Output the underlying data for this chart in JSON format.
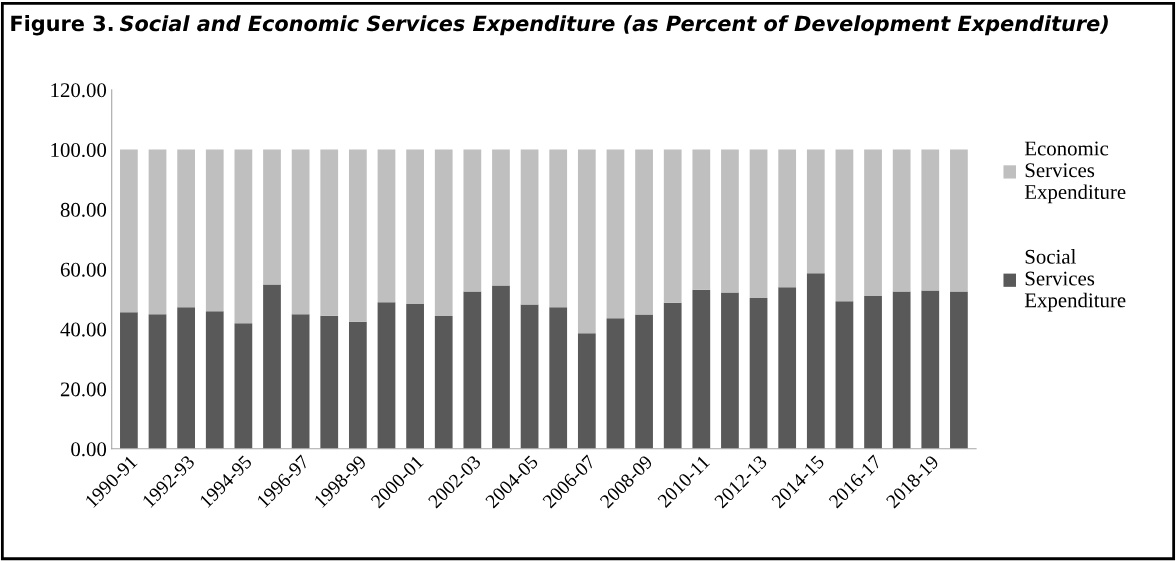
{
  "chart_data": {
    "type": "bar",
    "stacked": true,
    "title": "Figure 3.",
    "subtitle": "Social and Economic Services Expenditure (as Percent of Development Expenditure)",
    "categories": [
      "1990-91",
      null,
      "1992-93",
      null,
      "1994-95",
      null,
      "1996-97",
      null,
      "1998-99",
      null,
      "2000-01",
      null,
      "2002-03",
      null,
      "2004-05",
      null,
      "2006-07",
      null,
      "2008-09",
      null,
      "2010-11",
      null,
      "2012-13",
      null,
      "2014-15",
      null,
      "2016-17",
      null,
      "2018-19",
      null
    ],
    "series": [
      {
        "name": "Social Services Expenditure",
        "color": "#595959",
        "values": [
          45.6,
          45.0,
          47.3,
          46.0,
          42.0,
          54.9,
          45.0,
          44.5,
          42.5,
          49.0,
          48.4,
          44.4,
          52.6,
          54.6,
          48.2,
          47.3,
          38.6,
          43.6,
          44.9,
          48.8,
          53.2,
          52.2,
          50.4,
          54.0,
          58.7,
          49.3,
          51.1,
          52.6,
          52.9,
          52.6
        ]
      },
      {
        "name": "Economic Services Expenditure",
        "color": "#bfbfbf",
        "values": [
          54.4,
          55.0,
          52.7,
          54.0,
          58.0,
          45.1,
          55.0,
          55.5,
          57.5,
          51.0,
          51.6,
          55.6,
          47.4,
          45.4,
          51.8,
          52.7,
          61.4,
          56.4,
          55.1,
          51.2,
          46.8,
          47.8,
          49.6,
          46.0,
          41.3,
          50.7,
          48.9,
          47.4,
          47.1,
          47.4
        ]
      }
    ],
    "ylim": [
      0,
      120
    ],
    "yticks": [
      {
        "value": 0,
        "label": "0.00"
      },
      {
        "value": 20,
        "label": "20.00"
      },
      {
        "value": 40,
        "label": "40.00"
      },
      {
        "value": 60,
        "label": "60.00"
      },
      {
        "value": 80,
        "label": "80.00"
      },
      {
        "value": 100,
        "label": "100.00"
      },
      {
        "value": 120,
        "label": "120.00"
      }
    ],
    "grid": false,
    "legend": "right"
  }
}
